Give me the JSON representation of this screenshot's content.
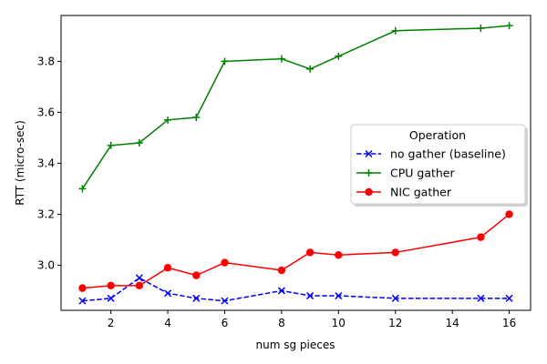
{
  "chart_data": {
    "type": "line",
    "xlabel": "num sg pieces",
    "ylabel": "RTT (micro-sec)",
    "xlim": [
      0.25,
      16.75
    ],
    "ylim": [
      2.823,
      3.98
    ],
    "xticks": [
      2,
      4,
      6,
      8,
      10,
      12,
      14,
      16
    ],
    "yticks": [
      3.0,
      3.2,
      3.4,
      3.6,
      3.8
    ],
    "grid": false,
    "legend": {
      "title": "Operation",
      "placement": "center-right"
    },
    "series": [
      {
        "name": "no gather (baseline)",
        "color": "#0000ff",
        "line_style": "dashed",
        "marker": "x",
        "x": [
          1,
          2,
          3,
          4,
          5,
          6,
          8,
          9,
          10,
          12,
          15,
          16
        ],
        "y": [
          2.86,
          2.87,
          2.95,
          2.89,
          2.87,
          2.86,
          2.9,
          2.88,
          2.88,
          2.87,
          2.87,
          2.87
        ]
      },
      {
        "name": "CPU gather",
        "color": "#008000",
        "line_style": "solid",
        "marker": "plus",
        "x": [
          1,
          2,
          3,
          4,
          5,
          6,
          8,
          9,
          10,
          12,
          15,
          16
        ],
        "y": [
          3.3,
          3.47,
          3.48,
          3.57,
          3.58,
          3.8,
          3.81,
          3.77,
          3.82,
          3.92,
          3.93,
          3.94
        ]
      },
      {
        "name": "NIC gather",
        "color": "#ff0000",
        "line_style": "solid",
        "marker": "circle",
        "x": [
          1,
          2,
          3,
          4,
          5,
          6,
          8,
          9,
          10,
          12,
          15,
          16
        ],
        "y": [
          2.91,
          2.92,
          2.92,
          2.99,
          2.96,
          3.01,
          2.98,
          3.05,
          3.04,
          3.05,
          3.11,
          3.2
        ]
      }
    ]
  }
}
